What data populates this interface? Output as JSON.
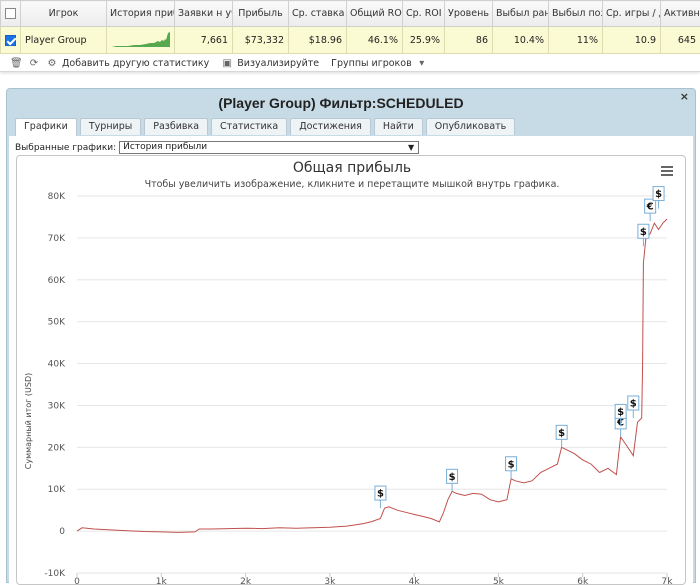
{
  "stats_table": {
    "headers": [
      "",
      "Игрок",
      "История прибыли",
      "Заявки н уч",
      "Прибыль",
      "Ср. ставка",
      "Общий ROI",
      "Ср. ROI",
      "Уровень",
      "Выбыл ранс",
      "Выбыл поз",
      "Ср. игры / д",
      "Активные"
    ],
    "row": {
      "checked": true,
      "player": "Player Group",
      "entries": "7,661",
      "profit": "$73,332",
      "avg_stake": "$18.96",
      "total_roi": "46.1%",
      "avg_roi": "25.9%",
      "level": "86",
      "early_out": "10.4%",
      "late_out": "11%",
      "avg_games_day": "10.9",
      "active": "645"
    }
  },
  "toolbar": {
    "add_stats": "Добавить другую статистику",
    "visualize": "Визуализируйте",
    "player_groups": "Группы игроков"
  },
  "panel": {
    "title": "(Player Group) Фильтр:SCHEDULED",
    "close": "×",
    "tabs": [
      "Графики",
      "Турниры",
      "Разбивка",
      "Статистика",
      "Достижения",
      "Найти",
      "Опубликовать"
    ],
    "active_tab": 0,
    "selector_label": "Выбранные графики:",
    "selector_value": "История прибыли"
  },
  "chart_data": {
    "type": "line",
    "title": "Общая прибыль",
    "subtitle": "Чтобы увеличить изображение, кликните и перетащите мышкой внутрь графика.",
    "ylabel": "Суммарный итог (USD)",
    "xlabel": "",
    "xlim": [
      0,
      7000
    ],
    "ylim": [
      -10000,
      80000
    ],
    "y_ticks": [
      "-10K",
      "0",
      "10K",
      "20K",
      "30K",
      "40K",
      "50K",
      "60K",
      "70K",
      "80K"
    ],
    "x_ticks": [
      "0",
      "1k",
      "2k",
      "3k",
      "4k",
      "5k",
      "6k",
      "7k"
    ],
    "grid": true,
    "series": [
      {
        "color": "#c0504d",
        "x": [
          0,
          60,
          200,
          400,
          600,
          800,
          1000,
          1200,
          1400,
          1450,
          1600,
          1800,
          2000,
          2200,
          2400,
          2600,
          2800,
          3000,
          3200,
          3400,
          3500,
          3600,
          3650,
          3700,
          3800,
          3900,
          4000,
          4100,
          4200,
          4300,
          4350,
          4400,
          4450,
          4500,
          4600,
          4700,
          4800,
          4900,
          5000,
          5100,
          5150,
          5200,
          5300,
          5400,
          5500,
          5600,
          5700,
          5750,
          5800,
          5900,
          6000,
          6100,
          6200,
          6300,
          6400,
          6450,
          6500,
          6550,
          6600,
          6650,
          6700,
          6710,
          6720,
          6750,
          6800,
          6850,
          6900,
          6950,
          7000
        ],
        "y": [
          0,
          800,
          500,
          300,
          100,
          -100,
          -200,
          -300,
          -200,
          500,
          500,
          600,
          700,
          600,
          800,
          700,
          800,
          900,
          1200,
          1800,
          2300,
          3000,
          5500,
          5800,
          5000,
          4500,
          4000,
          3500,
          3000,
          2200,
          4500,
          7500,
          9500,
          9000,
          8500,
          9000,
          8800,
          7500,
          7000,
          7500,
          12500,
          12000,
          11500,
          12000,
          14000,
          15000,
          16000,
          20000,
          19500,
          18500,
          17000,
          16000,
          14000,
          15000,
          13500,
          22500,
          21000,
          19500,
          18000,
          26000,
          27000,
          40000,
          64000,
          70000,
          71000,
          73500,
          72000,
          73500,
          74500
        ]
      }
    ],
    "markers": [
      {
        "x": 3600,
        "y": 5500,
        "symbol": "$"
      },
      {
        "x": 4450,
        "y": 9500,
        "symbol": "$"
      },
      {
        "x": 5150,
        "y": 12500,
        "symbol": "$"
      },
      {
        "x": 5750,
        "y": 20000,
        "symbol": "$"
      },
      {
        "x": 6450,
        "y": 22500,
        "symbol": "€"
      },
      {
        "x": 6450,
        "y": 25000,
        "symbol": "$"
      },
      {
        "x": 6600,
        "y": 27000,
        "symbol": "$"
      },
      {
        "x": 6720,
        "y": 68000,
        "symbol": "$"
      },
      {
        "x": 6800,
        "y": 74000,
        "symbol": "€"
      },
      {
        "x": 6900,
        "y": 77000,
        "symbol": "$"
      }
    ]
  }
}
